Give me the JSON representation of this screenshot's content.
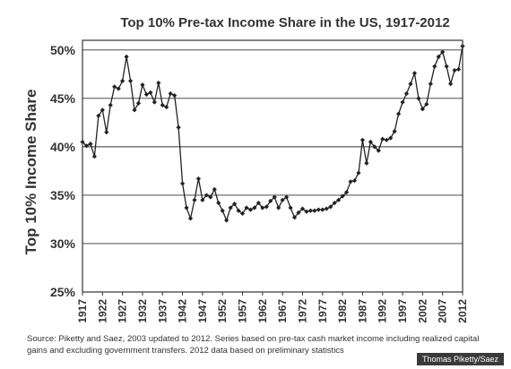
{
  "chart_data": {
    "type": "line",
    "title": "Top 10% Pre-tax Income Share in the US, 1917-2012",
    "xlabel": "",
    "ylabel": "Top 10% Income Share",
    "xlim": [
      1917,
      2012
    ],
    "ylim": [
      25,
      51
    ],
    "yticks": [
      25,
      30,
      35,
      40,
      45,
      50
    ],
    "ytick_labels": [
      "25%",
      "30%",
      "35%",
      "40%",
      "45%",
      "50%"
    ],
    "xticks": [
      1917,
      1922,
      1927,
      1932,
      1937,
      1942,
      1947,
      1952,
      1957,
      1962,
      1967,
      1972,
      1977,
      1982,
      1987,
      1992,
      1997,
      2002,
      2007,
      2012
    ],
    "grid": "horizontal",
    "legend": "none",
    "series": [
      {
        "color": "#222222",
        "marker": "diamond",
        "x": [
          1917,
          1918,
          1919,
          1920,
          1921,
          1922,
          1923,
          1924,
          1925,
          1926,
          1927,
          1928,
          1929,
          1930,
          1931,
          1932,
          1933,
          1934,
          1935,
          1936,
          1937,
          1938,
          1939,
          1940,
          1941,
          1942,
          1943,
          1944,
          1945,
          1946,
          1947,
          1948,
          1949,
          1950,
          1951,
          1952,
          1953,
          1954,
          1955,
          1956,
          1957,
          1958,
          1959,
          1960,
          1961,
          1962,
          1963,
          1964,
          1965,
          1966,
          1967,
          1968,
          1969,
          1970,
          1971,
          1972,
          1973,
          1974,
          1975,
          1976,
          1977,
          1978,
          1979,
          1980,
          1981,
          1982,
          1983,
          1984,
          1985,
          1986,
          1987,
          1988,
          1989,
          1990,
          1991,
          1992,
          1993,
          1994,
          1995,
          1996,
          1997,
          1998,
          1999,
          2000,
          2001,
          2002,
          2003,
          2004,
          2005,
          2006,
          2007,
          2008,
          2009,
          2010,
          2011,
          2012
        ],
        "y": [
          40.5,
          40.1,
          40.3,
          39.0,
          43.2,
          43.8,
          41.5,
          44.3,
          46.2,
          46.0,
          46.8,
          49.3,
          46.8,
          43.8,
          44.5,
          46.4,
          45.4,
          45.6,
          44.6,
          46.6,
          44.3,
          44.1,
          45.5,
          45.3,
          42.0,
          36.2,
          33.7,
          32.6,
          34.5,
          36.7,
          34.5,
          35.0,
          34.8,
          35.6,
          34.2,
          33.4,
          32.4,
          33.7,
          34.1,
          33.4,
          33.1,
          33.7,
          33.5,
          33.7,
          34.2,
          33.7,
          33.8,
          34.4,
          34.8,
          33.7,
          34.5,
          34.8,
          33.7,
          32.7,
          33.2,
          33.6,
          33.3,
          33.4,
          33.4,
          33.5,
          33.5,
          33.6,
          33.8,
          34.2,
          34.5,
          34.9,
          35.3,
          36.4,
          36.5,
          37.3,
          40.7,
          38.3,
          40.5,
          40.0,
          39.6,
          40.8,
          40.7,
          40.9,
          41.6,
          43.4,
          44.6,
          45.5,
          46.5,
          47.6,
          45.0,
          43.9,
          44.4,
          46.5,
          48.3,
          49.3,
          49.8,
          48.3,
          46.5,
          47.9,
          48.0,
          50.4
        ]
      }
    ]
  },
  "source_note": "Source: Piketty and Saez, 2003 updated to 2012. Series based on pre-tax cash market income including realized capital gains and excluding government transfers. 2012 data based on preliminary statistics",
  "credit": "Thomas Piketty/Saez"
}
